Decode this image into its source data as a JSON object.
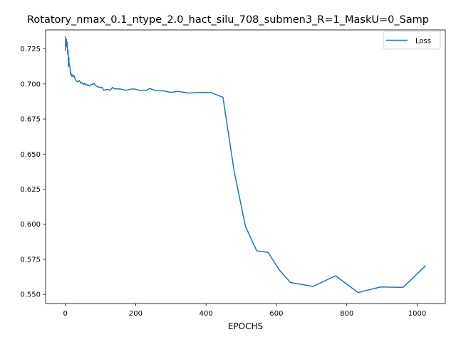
{
  "chart_data": {
    "type": "line",
    "title": "Rotatory_nmax_0.1_ntype_2.0_hact_silu_708_submen3_R=1_MaskU=0_Samp",
    "xlabel": "EPOCHS",
    "ylabel": "",
    "xlim": [
      -56,
      1080
    ],
    "ylim": [
      0.5435,
      0.7385
    ],
    "xticks": [
      0,
      200,
      400,
      600,
      800,
      1000
    ],
    "xtick_labels": [
      "0",
      "200",
      "400",
      "600",
      "800",
      "1000"
    ],
    "yticks": [
      0.55,
      0.575,
      0.6,
      0.625,
      0.65,
      0.675,
      0.7,
      0.725
    ],
    "ytick_labels": [
      "0.550",
      "0.575",
      "0.600",
      "0.625",
      "0.650",
      "0.675",
      "0.700",
      "0.725"
    ],
    "grid": false,
    "legend_position": "top-right",
    "series": [
      {
        "name": "Loss",
        "color": "#1f77b4",
        "x": [
          0,
          1,
          2,
          3,
          4,
          5,
          6,
          7,
          8,
          9,
          10,
          11,
          12,
          13,
          14,
          15,
          16,
          18,
          20,
          22,
          24,
          26,
          28,
          32,
          36,
          40,
          44,
          48,
          52,
          56,
          60,
          64,
          68,
          72,
          76,
          80,
          86,
          92,
          98,
          104,
          110,
          116,
          122,
          128,
          134,
          140,
          150,
          160,
          170,
          180,
          190,
          200,
          210,
          220,
          230,
          240,
          250,
          260,
          280,
          300,
          320,
          350,
          385,
          415,
          448,
          480,
          512,
          544,
          576,
          608,
          640,
          704,
          768,
          832,
          896,
          960,
          1024
        ],
        "y": [
          0.7235,
          0.7338,
          0.727,
          0.732,
          0.7265,
          0.73,
          0.726,
          0.721,
          0.724,
          0.7125,
          0.719,
          0.713,
          0.714,
          0.712,
          0.71,
          0.707,
          0.708,
          0.7055,
          0.7065,
          0.705,
          0.706,
          0.7055,
          0.7035,
          0.702,
          0.7015,
          0.7025,
          0.7005,
          0.701,
          0.6995,
          0.7005,
          0.699,
          0.6995,
          0.6985,
          0.6995,
          0.6995,
          0.7005,
          0.699,
          0.698,
          0.6975,
          0.6975,
          0.6955,
          0.696,
          0.696,
          0.6955,
          0.6975,
          0.6965,
          0.6965,
          0.6962,
          0.6955,
          0.6958,
          0.6965,
          0.6962,
          0.6955,
          0.6955,
          0.6955,
          0.6968,
          0.6958,
          0.6953,
          0.695,
          0.694,
          0.6947,
          0.6935,
          0.694,
          0.6938,
          0.6905,
          0.6375,
          0.5985,
          0.581,
          0.58,
          0.5675,
          0.5585,
          0.5557,
          0.5633,
          0.5513,
          0.5553,
          0.555,
          0.5705
        ]
      }
    ]
  }
}
